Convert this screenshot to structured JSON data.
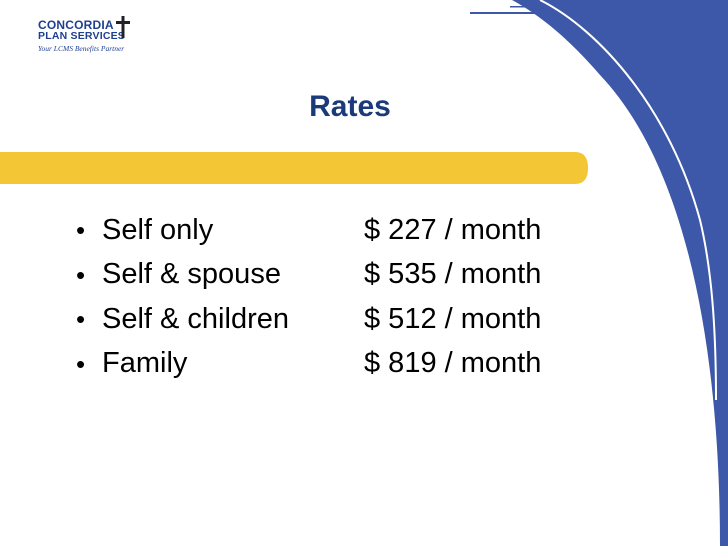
{
  "logo": {
    "line1": "CONCORDIA",
    "line2": "PLAN SERVICES",
    "tagline": "Your LCMS Benefits Partner"
  },
  "slide": {
    "title": "Rates",
    "items": [
      {
        "label": "Self only",
        "value": "$ 227 / month"
      },
      {
        "label": "Self & spouse",
        "value": "$ 535 / month"
      },
      {
        "label": "Self & children",
        "value": "$ 512 / month"
      },
      {
        "label": "Family",
        "value": "$ 819 / month"
      }
    ]
  },
  "colors": {
    "accent_blue": "#3d58a8",
    "highlight_yellow": "#f2c634",
    "title_color": "#1a3a7a"
  }
}
